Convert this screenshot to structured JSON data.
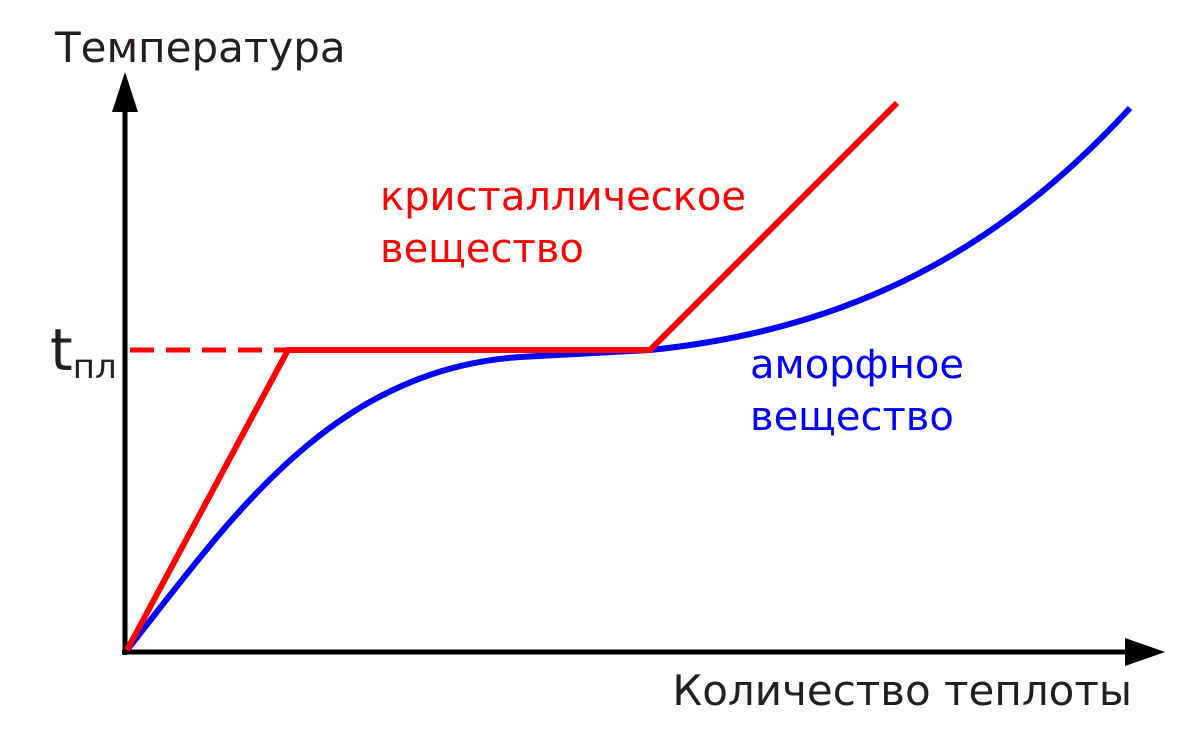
{
  "axes": {
    "y_label": "Температура",
    "x_label": "Количество теплоты"
  },
  "melting_point": {
    "symbol": "t",
    "subscript": "пл"
  },
  "curves": [
    {
      "label": [
        "кристаллическое",
        "вещество"
      ]
    },
    {
      "label": [
        "аморфное",
        "вещество"
      ]
    }
  ]
}
